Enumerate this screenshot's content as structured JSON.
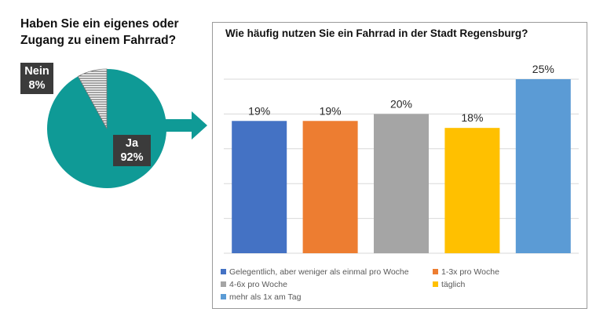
{
  "pie": {
    "title_line1": "Haben Sie ein eigenes oder",
    "title_line2": "Zugang zu einem Fahrrad?",
    "slices": [
      {
        "label": "Ja",
        "value_text": "92%",
        "value": 92,
        "color": "#0f9a96"
      },
      {
        "label": "Nein",
        "value_text": "8%",
        "value": 8,
        "color": "#ffffff",
        "pattern": "horizontal-lines"
      }
    ]
  },
  "arrow": {
    "color": "#0f9a96",
    "icon": "right-arrow-icon"
  },
  "chart_data": {
    "type": "bar",
    "title": "Wie häufig nutzen Sie ein Fahrrad in der Stadt Regensburg?",
    "categories": [
      "Gelegentlich, aber weniger als einmal pro Woche",
      "1-3x pro Woche",
      "4-6x pro Woche",
      "täglich",
      "mehr als 1x am Tag"
    ],
    "values": [
      19,
      19,
      20,
      18,
      25
    ],
    "value_labels": [
      "19%",
      "19%",
      "20%",
      "18%",
      "25%"
    ],
    "colors": [
      "#4472c4",
      "#ed7d31",
      "#a5a5a5",
      "#ffc000",
      "#5b9bd5"
    ],
    "ylim": [
      0,
      25
    ],
    "grid": true,
    "legend": "bottom"
  }
}
